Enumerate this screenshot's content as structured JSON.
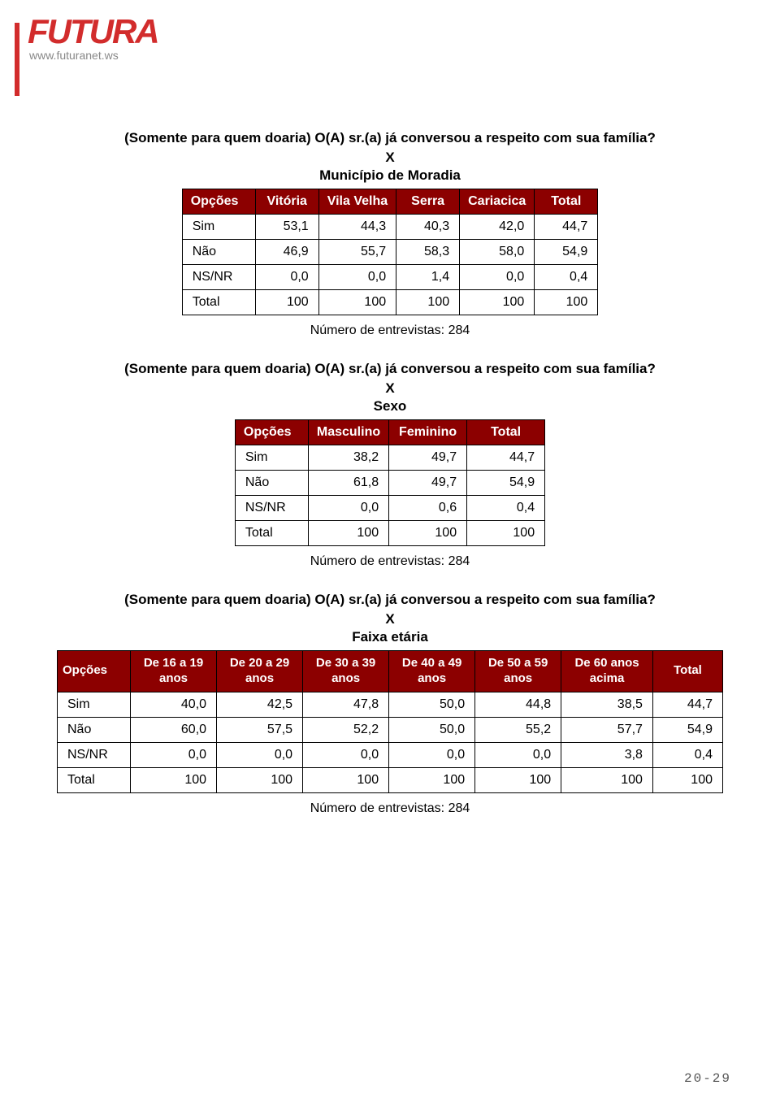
{
  "brand": {
    "name": "FUTURA",
    "url": "www.futuranet.ws"
  },
  "palette": {
    "header_bg": "#8c0000",
    "header_text": "#ffffff",
    "brand_red": "#d22c2c",
    "page_bg": "#ffffff",
    "text": "#000000"
  },
  "typography": {
    "body_font": "Arial",
    "body_size_pt": 12,
    "title_size_pt": 13,
    "pagenum_font": "Courier New"
  },
  "strings": {
    "x_sep": "X",
    "footer_284": "Número de entrevistas: 284",
    "opcoes": "Opções",
    "total": "Total"
  },
  "section1": {
    "title": "(Somente para quem doaria) O(A) sr.(a) já conversou a respeito com sua família?",
    "subtitle": "Município de Moradia",
    "columns": [
      "Vitória",
      "Vila Velha",
      "Serra",
      "Cariacica",
      "Total"
    ],
    "rows": [
      {
        "label": "Sim",
        "values": [
          "53,1",
          "44,3",
          "40,3",
          "42,0",
          "44,7"
        ]
      },
      {
        "label": "Não",
        "values": [
          "46,9",
          "55,7",
          "58,3",
          "58,0",
          "54,9"
        ]
      },
      {
        "label": "NS/NR",
        "values": [
          "0,0",
          "0,0",
          "1,4",
          "0,0",
          "0,4"
        ]
      },
      {
        "label": "Total",
        "values": [
          "100",
          "100",
          "100",
          "100",
          "100"
        ]
      }
    ]
  },
  "section2": {
    "title": "(Somente para quem doaria) O(A) sr.(a) já conversou a respeito com sua família?",
    "subtitle": "Sexo",
    "columns": [
      "Masculino",
      "Feminino",
      "Total"
    ],
    "rows": [
      {
        "label": "Sim",
        "values": [
          "38,2",
          "49,7",
          "44,7"
        ]
      },
      {
        "label": "Não",
        "values": [
          "61,8",
          "49,7",
          "54,9"
        ]
      },
      {
        "label": "NS/NR",
        "values": [
          "0,0",
          "0,6",
          "0,4"
        ]
      },
      {
        "label": "Total",
        "values": [
          "100",
          "100",
          "100"
        ]
      }
    ]
  },
  "section3": {
    "title": "(Somente para quem doaria) O(A) sr.(a) já conversou a respeito com sua família?",
    "subtitle": "Faixa etária",
    "columns": [
      "De 16 a 19 anos",
      "De 20 a 29 anos",
      "De 30 a 39 anos",
      "De 40 a 49 anos",
      "De 50 a 59 anos",
      "De 60 anos acima",
      "Total"
    ],
    "rows": [
      {
        "label": "Sim",
        "values": [
          "40,0",
          "42,5",
          "47,8",
          "50,0",
          "44,8",
          "38,5",
          "44,7"
        ]
      },
      {
        "label": "Não",
        "values": [
          "60,0",
          "57,5",
          "52,2",
          "50,0",
          "55,2",
          "57,7",
          "54,9"
        ]
      },
      {
        "label": "NS/NR",
        "values": [
          "0,0",
          "0,0",
          "0,0",
          "0,0",
          "0,0",
          "3,8",
          "0,4"
        ]
      },
      {
        "label": "Total",
        "values": [
          "100",
          "100",
          "100",
          "100",
          "100",
          "100",
          "100"
        ]
      }
    ]
  },
  "page_number": "20-29"
}
